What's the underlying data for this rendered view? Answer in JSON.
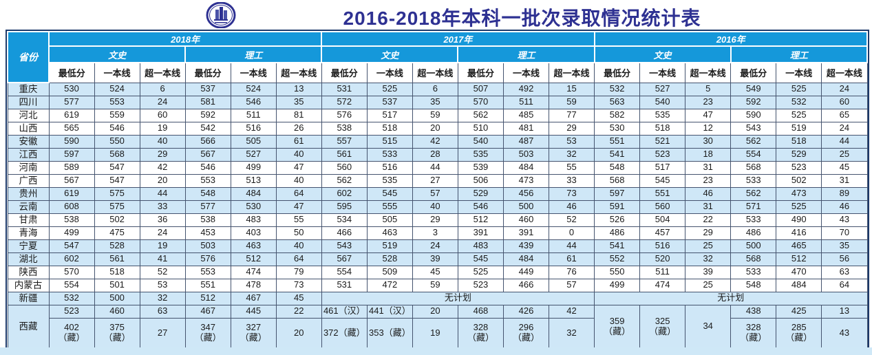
{
  "page": {
    "logo_name": "university-emblem"
  },
  "colors": {
    "header_blue": "#1598da",
    "row_light_blue": "#cfe7f7",
    "outer_border_navy": "#1d3a6b",
    "title_navy": "#2e3192",
    "inner_border": "#44536e",
    "bottom_strip": "#cfe8f7"
  },
  "chart_data": {
    "type": "table",
    "title": "2016-2018年本科一批次录取情况统计表",
    "header": {
      "province": "省份",
      "years": [
        "2018年",
        "2017年",
        "2016年"
      ],
      "streams": [
        "文史",
        "理工"
      ],
      "metrics": [
        "最低分",
        "一本线",
        "超一本线"
      ]
    },
    "no_plan": "无计划",
    "rows": [
      {
        "shade": "b",
        "cells": [
          "重庆",
          "530",
          "524",
          "6",
          "537",
          "524",
          "13",
          "531",
          "525",
          "6",
          "507",
          "492",
          "15",
          "532",
          "527",
          "5",
          "549",
          "525",
          "24"
        ]
      },
      {
        "shade": "b",
        "cells": [
          "四川",
          "577",
          "553",
          "24",
          "581",
          "546",
          "35",
          "572",
          "537",
          "35",
          "570",
          "511",
          "59",
          "563",
          "540",
          "23",
          "592",
          "532",
          "60"
        ]
      },
      {
        "shade": "w",
        "cells": [
          "河北",
          "619",
          "559",
          "60",
          "592",
          "511",
          "81",
          "576",
          "517",
          "59",
          "562",
          "485",
          "77",
          "582",
          "535",
          "47",
          "590",
          "525",
          "65"
        ]
      },
      {
        "shade": "w",
        "cells": [
          "山西",
          "565",
          "546",
          "19",
          "542",
          "516",
          "26",
          "538",
          "518",
          "20",
          "510",
          "481",
          "29",
          "530",
          "518",
          "12",
          "543",
          "519",
          "24"
        ]
      },
      {
        "shade": "b",
        "cells": [
          "安徽",
          "590",
          "550",
          "40",
          "566",
          "505",
          "61",
          "557",
          "515",
          "42",
          "540",
          "487",
          "53",
          "551",
          "521",
          "30",
          "562",
          "518",
          "44"
        ]
      },
      {
        "shade": "b",
        "cells": [
          "江西",
          "597",
          "568",
          "29",
          "567",
          "527",
          "40",
          "561",
          "533",
          "28",
          "535",
          "503",
          "32",
          "541",
          "523",
          "18",
          "554",
          "529",
          "25"
        ]
      },
      {
        "shade": "w",
        "cells": [
          "河南",
          "589",
          "547",
          "42",
          "546",
          "499",
          "47",
          "560",
          "516",
          "44",
          "539",
          "484",
          "55",
          "548",
          "517",
          "31",
          "568",
          "523",
          "45"
        ]
      },
      {
        "shade": "w",
        "cells": [
          "广西",
          "567",
          "547",
          "20",
          "553",
          "513",
          "40",
          "562",
          "535",
          "27",
          "506",
          "473",
          "33",
          "568",
          "545",
          "23",
          "533",
          "502",
          "31"
        ]
      },
      {
        "shade": "b",
        "cells": [
          "贵州",
          "619",
          "575",
          "44",
          "548",
          "484",
          "64",
          "602",
          "545",
          "57",
          "529",
          "456",
          "73",
          "597",
          "551",
          "46",
          "562",
          "473",
          "89"
        ]
      },
      {
        "shade": "b",
        "cells": [
          "云南",
          "608",
          "575",
          "33",
          "577",
          "530",
          "47",
          "595",
          "555",
          "40",
          "546",
          "500",
          "46",
          "591",
          "560",
          "31",
          "571",
          "525",
          "46"
        ]
      },
      {
        "shade": "w",
        "cells": [
          "甘肃",
          "538",
          "502",
          "36",
          "538",
          "483",
          "55",
          "534",
          "505",
          "29",
          "512",
          "460",
          "52",
          "526",
          "504",
          "22",
          "533",
          "490",
          "43"
        ]
      },
      {
        "shade": "w",
        "cells": [
          "青海",
          "499",
          "475",
          "24",
          "453",
          "403",
          "50",
          "466",
          "463",
          "3",
          "391",
          "391",
          "0",
          "486",
          "457",
          "29",
          "486",
          "416",
          "70"
        ]
      },
      {
        "shade": "b",
        "cells": [
          "宁夏",
          "547",
          "528",
          "19",
          "503",
          "463",
          "40",
          "543",
          "519",
          "24",
          "483",
          "439",
          "44",
          "541",
          "516",
          "25",
          "500",
          "465",
          "35"
        ]
      },
      {
        "shade": "b",
        "cells": [
          "湖北",
          "602",
          "561",
          "41",
          "576",
          "512",
          "64",
          "567",
          "528",
          "39",
          "545",
          "484",
          "61",
          "552",
          "520",
          "32",
          "568",
          "512",
          "56"
        ]
      },
      {
        "shade": "w",
        "cells": [
          "陕西",
          "570",
          "518",
          "52",
          "553",
          "474",
          "79",
          "554",
          "509",
          "45",
          "525",
          "449",
          "76",
          "550",
          "511",
          "39",
          "533",
          "470",
          "63"
        ]
      },
      {
        "shade": "w",
        "cells": [
          "内蒙古",
          "554",
          "501",
          "53",
          "551",
          "478",
          "73",
          "531",
          "472",
          "59",
          "523",
          "466",
          "57",
          "499",
          "474",
          "25",
          "548",
          "484",
          "64"
        ]
      },
      {
        "shade": "b",
        "cells": [
          "新疆",
          "532",
          "500",
          "32",
          "512",
          "467",
          "45",
          {
            "t": "无计划",
            "cs": 6
          },
          {
            "t": "无计划",
            "cs": 6
          }
        ]
      },
      {
        "shade": "b",
        "cells": [
          {
            "t": "西藏",
            "rs": 2
          },
          "523",
          "460",
          "63",
          "467",
          "445",
          "22",
          "461（汉）",
          "441（汉）",
          "20",
          "468",
          "426",
          "42",
          {
            "t": "359\n（藏）",
            "rs": 2
          },
          {
            "t": "325\n（藏）",
            "rs": 2
          },
          {
            "t": "34",
            "rs": 2
          },
          "438",
          "425",
          "13"
        ]
      },
      {
        "shade": "b",
        "cont": true,
        "tall": true,
        "cells": [
          "402\n（藏）",
          "375\n（藏）",
          "27",
          "347\n（藏）",
          "327\n（藏）",
          "20",
          "372（藏）",
          "353（藏）",
          "19",
          "328\n（藏）",
          "296\n（藏）",
          "32",
          "328\n（藏）",
          "285\n（藏）",
          "43"
        ]
      }
    ]
  }
}
